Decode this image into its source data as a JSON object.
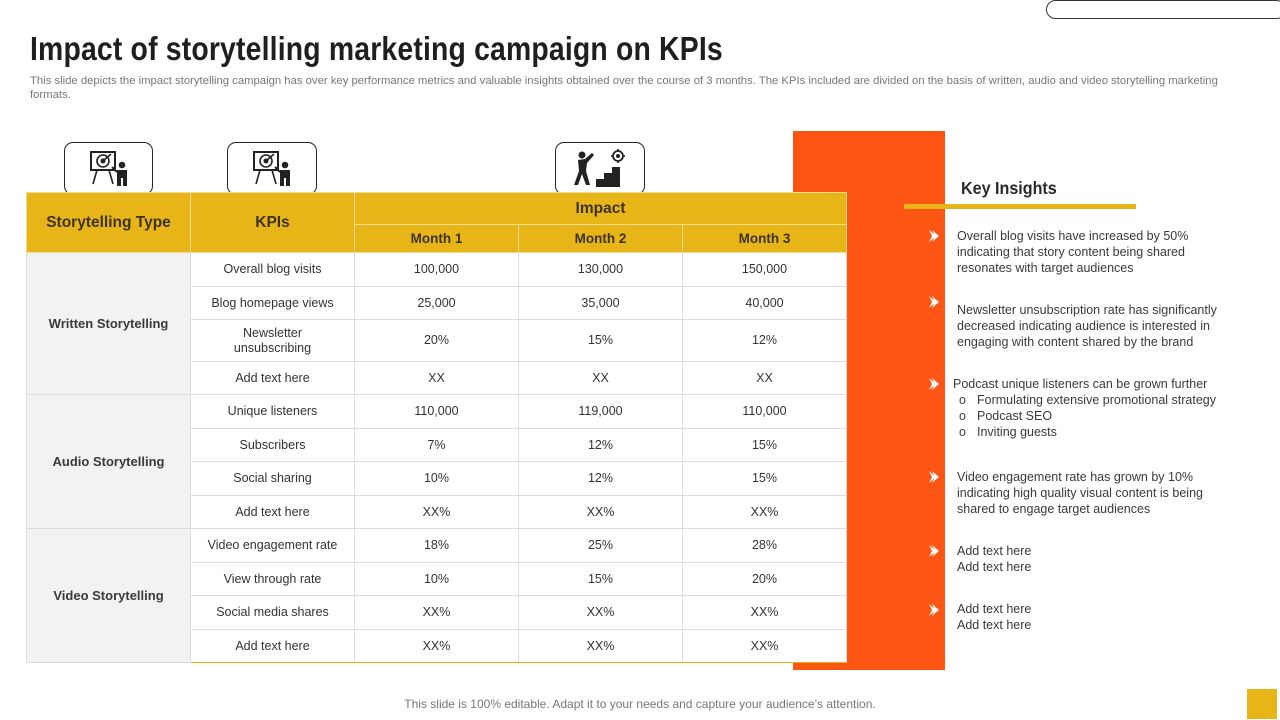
{
  "slide": {
    "title": "Impact of storytelling marketing campaign on KPIs",
    "subtitle": "This slide depicts the impact storytelling campaign has over key performance metrics and valuable insights obtained over the course of 3 months. The KPIs included are divided on the basis of written, audio and video storytelling marketing formats.",
    "footer": "This slide is 100% editable. Adapt it to your needs and capture your audience’s attention."
  },
  "icons": [
    "presentation-target-icon",
    "presentation-target-icon",
    "growth-stairs-icon"
  ],
  "table": {
    "headers": {
      "type": "Storytelling Type",
      "kpis": "KPIs",
      "impact": "Impact",
      "months": [
        "Month 1",
        "Month 2",
        "Month 3"
      ]
    },
    "groups": [
      {
        "name": "Written Storytelling",
        "rows": [
          {
            "kpi": "Overall  blog visits",
            "values": [
              "100,000",
              "130,000",
              "150,000"
            ]
          },
          {
            "kpi": "Blog homepage views",
            "values": [
              "25,000",
              "35,000",
              "40,000"
            ]
          },
          {
            "kpi": "Newsletter unsubscribing",
            "values": [
              "20%",
              "15%",
              "12%"
            ]
          },
          {
            "kpi": "Add text here",
            "values": [
              "XX",
              "XX",
              "XX"
            ]
          }
        ]
      },
      {
        "name": "Audio Storytelling",
        "rows": [
          {
            "kpi": "Unique  listeners",
            "values": [
              "110,000",
              "119,000",
              "110,000"
            ]
          },
          {
            "kpi": "Subscribers",
            "values": [
              "7%",
              "12%",
              "15%"
            ]
          },
          {
            "kpi": "Social sharing",
            "values": [
              "10%",
              "12%",
              "15%"
            ]
          },
          {
            "kpi": "Add text here",
            "values": [
              "XX%",
              "XX%",
              "XX%"
            ]
          }
        ]
      },
      {
        "name": "Video Storytelling",
        "rows": [
          {
            "kpi": "Video engagement  rate",
            "values": [
              "18%",
              "25%",
              "28%"
            ]
          },
          {
            "kpi": "View through  rate",
            "values": [
              "10%",
              "15%",
              "20%"
            ]
          },
          {
            "kpi": "Social media shares",
            "values": [
              "XX%",
              "XX%",
              "XX%"
            ]
          },
          {
            "kpi": "Add text here",
            "values": [
              "XX%",
              "XX%",
              "XX%"
            ]
          }
        ]
      }
    ]
  },
  "insights": {
    "title": "Key Insights",
    "items": [
      {
        "text": "Overall  blog visits have increased by 50% indicating that story content being shared resonates with target audiences"
      },
      {
        "text": "Newsletter unsubscription rate has significantly decreased indicating audience is interested in engaging with content shared by the brand"
      },
      {
        "text": "Podcast unique listeners  can be grown further",
        "subitems": [
          "Formulating extensive promotional strategy",
          "Podcast SEO",
          "Inviting  guests"
        ]
      },
      {
        "text": "Video engagement  rate has grown  by 10% indicating high quality visual content is being shared to engage target audiences"
      },
      {
        "text": "Add text here\nAdd text here"
      },
      {
        "text": "Add text here\nAdd text here"
      }
    ]
  },
  "colors": {
    "accent_yellow": "#e7b518",
    "accent_orange": "#fd5513",
    "group_bg": "#f2f2f2"
  }
}
